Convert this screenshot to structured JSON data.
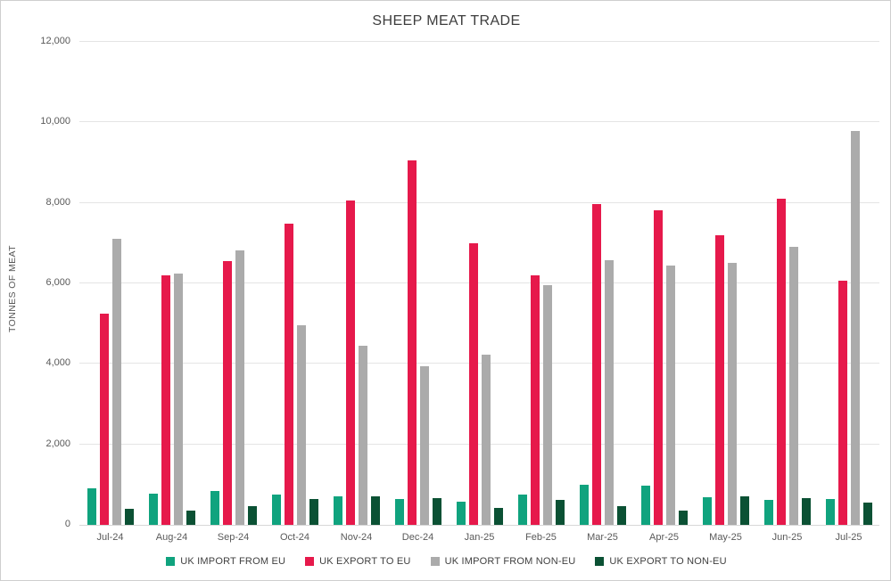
{
  "title": "SHEEP MEAT TRADE",
  "chart_data": {
    "type": "bar",
    "title": "SHEEP MEAT TRADE",
    "xlabel": "",
    "ylabel": "TONNES OF MEAT",
    "ylim": [
      0,
      12000
    ],
    "ytick_step": 2000,
    "ytick_labels": [
      "0",
      "2,000",
      "4,000",
      "6,000",
      "8,000",
      "10,000",
      "12,000"
    ],
    "grid": true,
    "legend_position": "bottom",
    "categories": [
      "Jul-24",
      "Aug-24",
      "Sep-24",
      "Oct-24",
      "Nov-24",
      "Dec-24",
      "Jan-25",
      "Feb-25",
      "Mar-25",
      "Apr-25",
      "May-25",
      "Jun-25",
      "Jul-25"
    ],
    "series": [
      {
        "name": "UK IMPORT FROM EU",
        "color": "#10A37E",
        "values": [
          900,
          780,
          840,
          750,
          700,
          650,
          570,
          750,
          1000,
          980,
          690,
          630,
          640
        ]
      },
      {
        "name": "UK EXPORT TO EU",
        "color": "#E6194B",
        "values": [
          5250,
          6200,
          6560,
          7490,
          8050,
          9050,
          7000,
          6200,
          7980,
          7820,
          7200,
          8100,
          6060
        ]
      },
      {
        "name": "UK IMPORT FROM NON-EU",
        "color": "#ABABAB",
        "values": [
          7100,
          6250,
          6830,
          4950,
          4450,
          3940,
          4230,
          5950,
          6570,
          6440,
          6520,
          6900,
          9790
        ]
      },
      {
        "name": "UK EXPORT TO NON-EU",
        "color": "#0B5134",
        "values": [
          400,
          350,
          460,
          650,
          700,
          660,
          430,
          610,
          460,
          350,
          700,
          660,
          550
        ]
      }
    ]
  },
  "colors": {
    "background": "#FFFFFF",
    "border": "#CFCFCF",
    "gridline": "#E4E4E4",
    "axis_text": "#595959",
    "title_text": "#3D3D3D",
    "legend_text": "#404040"
  }
}
